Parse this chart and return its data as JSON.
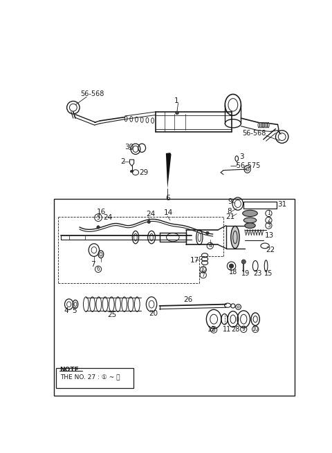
{
  "background": "#ffffff",
  "line_color": "#1a1a1a",
  "text_color": "#1a1a1a",
  "fig_width": 4.8,
  "fig_height": 6.56,
  "dpi": 100
}
